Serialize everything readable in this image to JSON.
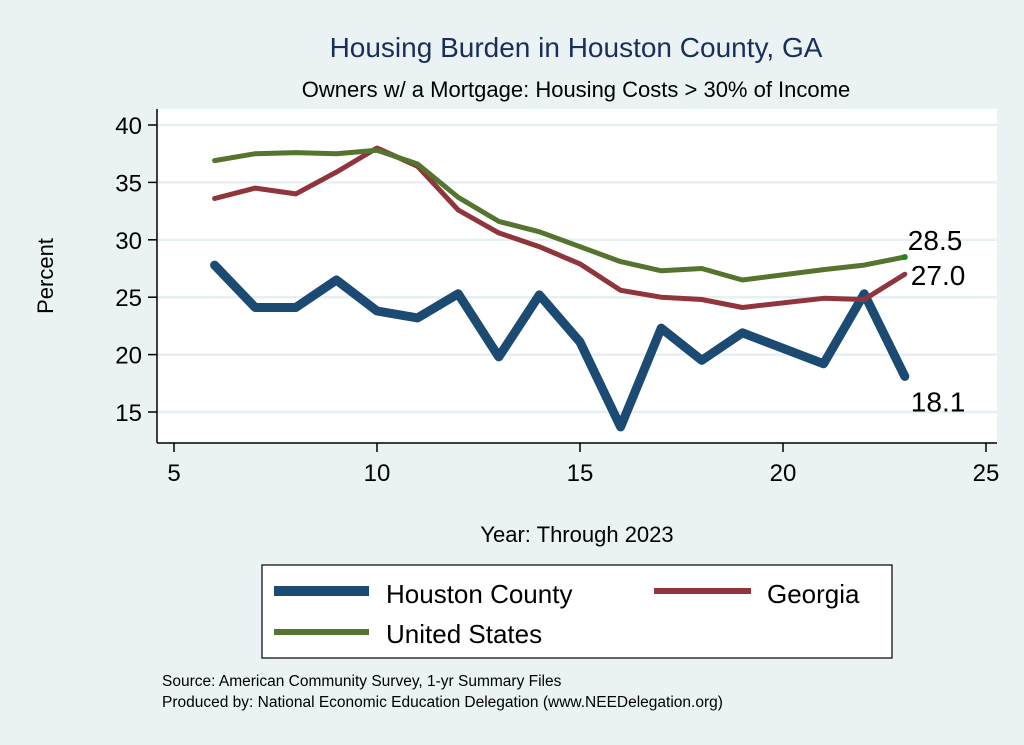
{
  "chart_data": {
    "type": "line",
    "title": "Housing Burden in Houston County, GA",
    "subtitle": "Owners w/ a Mortgage: Housing Costs > 30% of Income",
    "xlabel": "Year: Through 2023",
    "ylabel": "Percent",
    "xlim": [
      5,
      25
    ],
    "ylim": [
      13,
      41
    ],
    "xticks": [
      5,
      10,
      15,
      20,
      25
    ],
    "yticks": [
      15,
      20,
      25,
      30,
      35,
      40
    ],
    "grid": true,
    "legend_position": "bottom",
    "series": [
      {
        "name": "Houston County",
        "color": "#1b4a72",
        "x": [
          6,
          7,
          8,
          9,
          10,
          11,
          12,
          13,
          14,
          15,
          16,
          17,
          18,
          19,
          21,
          22,
          23
        ],
        "values": [
          27.8,
          24.1,
          24.1,
          26.5,
          23.8,
          23.2,
          25.3,
          19.8,
          25.2,
          21.1,
          13.7,
          22.3,
          19.5,
          21.9,
          19.2,
          25.3,
          18.1
        ],
        "end_label": "18.1"
      },
      {
        "name": "Georgia",
        "color": "#90353b",
        "x": [
          6,
          7,
          8,
          9,
          10,
          11,
          12,
          13,
          14,
          15,
          16,
          17,
          18,
          19,
          21,
          22,
          23
        ],
        "values": [
          33.6,
          34.5,
          34.0,
          35.9,
          38.0,
          36.4,
          32.6,
          30.6,
          29.4,
          27.9,
          25.6,
          25.0,
          24.8,
          24.1,
          24.9,
          24.8,
          27.0
        ],
        "end_label": "27.0"
      },
      {
        "name": "United States",
        "color": "#55752f",
        "x": [
          6,
          7,
          8,
          9,
          10,
          11,
          12,
          13,
          14,
          15,
          16,
          17,
          18,
          19,
          21,
          22,
          23
        ],
        "values": [
          36.9,
          37.5,
          37.6,
          37.5,
          37.8,
          36.6,
          33.7,
          31.6,
          30.7,
          29.4,
          28.1,
          27.3,
          27.5,
          26.5,
          27.4,
          27.8,
          28.5
        ],
        "end_label": "28.5"
      }
    ],
    "legend": [
      {
        "label": "Houston County",
        "color": "#1b4a72"
      },
      {
        "label": "Georgia",
        "color": "#90353b"
      },
      {
        "label": "United States",
        "color": "#55752f"
      }
    ],
    "notes": [
      "Source: American Community Survey, 1-yr Summary Files",
      "Produced by: National Economic Education Delegation (www.NEEDelegation.org)"
    ]
  }
}
